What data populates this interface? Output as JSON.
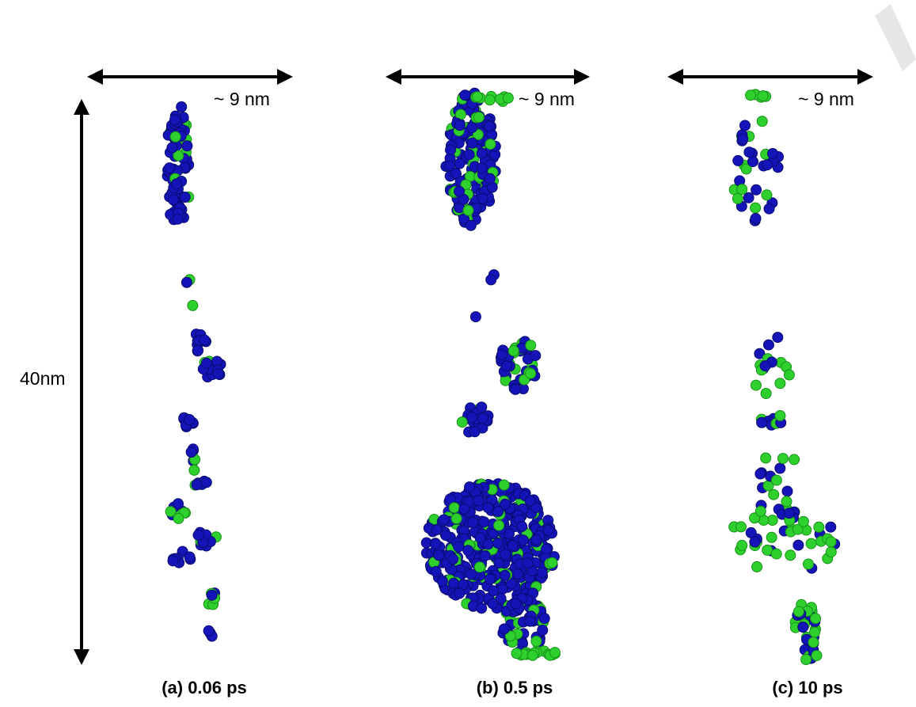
{
  "figure": {
    "height_label": "40nm",
    "panels": [
      {
        "caption": "(a) 0.06 ps",
        "width_label": "~ 9 nm"
      },
      {
        "caption": "(b) 0.5 ps",
        "width_label": "~ 9 nm"
      },
      {
        "caption": "(c) 10 ps",
        "width_label": "~ 9 nm"
      }
    ]
  }
}
